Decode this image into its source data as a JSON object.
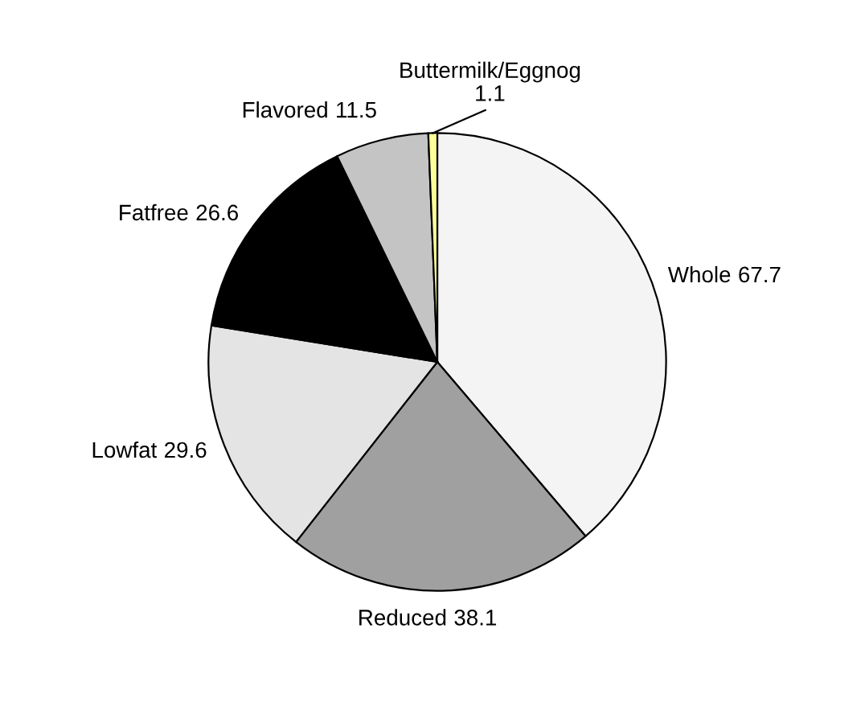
{
  "chart_data": {
    "type": "pie",
    "categories": [
      "Whole",
      "Reduced",
      "Lowfat",
      "Fatfree",
      "Flavored",
      "Buttermilk/Eggnog"
    ],
    "values": [
      67.7,
      38.1,
      29.6,
      26.6,
      11.5,
      1.1
    ],
    "colors": [
      "#f4f4f4",
      "#a0a0a0",
      "#e4e4e4",
      "#000000",
      "#c4c4c4",
      "#ffff99"
    ],
    "data_labels": true,
    "legend": false
  }
}
